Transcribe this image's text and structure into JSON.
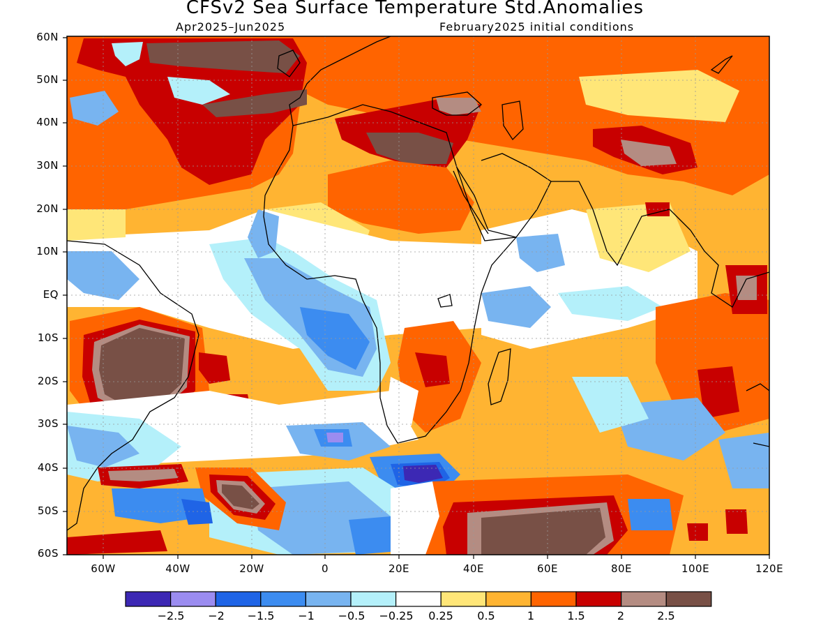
{
  "title": "CFSv2 Sea Surface Temperature Std.Anomalies",
  "subtitle_left": "Apr2025–Jun2025",
  "subtitle_right": "February2025 initial conditions",
  "lat_labels": [
    "60N",
    "50N",
    "40N",
    "30N",
    "20N",
    "10N",
    "EQ",
    "10S",
    "20S",
    "30S",
    "40S",
    "50S",
    "60S"
  ],
  "lon_labels": [
    "60W",
    "40W",
    "20W",
    "0",
    "20E",
    "40E",
    "60E",
    "80E",
    "100E",
    "120E"
  ],
  "colorbar": {
    "colors": [
      "#3c28b4",
      "#9b8cf0",
      "#1f64e6",
      "#3c8cf0",
      "#78b4f0",
      "#b4f0fa",
      "#ffffff",
      "#ffe678",
      "#ffb432",
      "#ff6400",
      "#c80000",
      "#b48c82",
      "#785046"
    ],
    "labels": [
      "−2.5",
      "−2",
      "−1.5",
      "−1",
      "−0.5",
      "−0.25",
      "0.25",
      "0.5",
      "1",
      "1.5",
      "2",
      "2.5"
    ]
  },
  "palette": {
    "background": "#ffb432",
    "neutral": "#ffffff",
    "pale_orange": "#ffe678",
    "orange": "#ff6400",
    "red": "#c80000",
    "pink_brown": "#b48c82",
    "dark_brown": "#785046",
    "light_blue": "#b4f0fa",
    "mid_blue": "#78b4f0",
    "blue": "#3c8cf0",
    "dark_blue": "#1f64e6",
    "lilac": "#9b8cf0",
    "indigo": "#3c28b4"
  }
}
